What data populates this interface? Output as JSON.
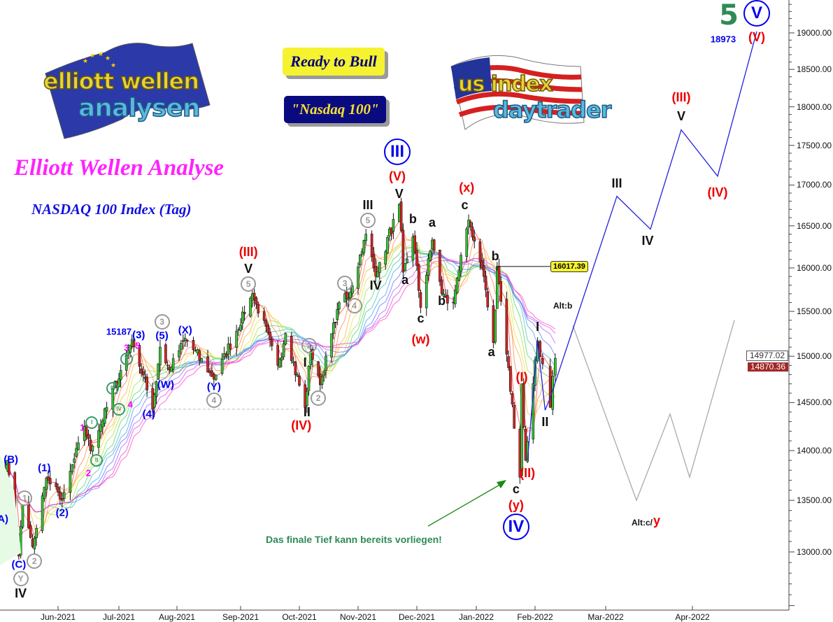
{
  "header": {
    "ready_box": "Ready to Bull",
    "index_box": "\"Nasdaq 100\"",
    "title": "Elliott Wellen Analyse",
    "subtitle": "NASDAQ 100 Index (Tag)"
  },
  "logos": {
    "left": {
      "line1": "elliott wellen",
      "line2": "analysen"
    },
    "right": {
      "line1": "us index",
      "line2": "daytrader"
    }
  },
  "colors": {
    "up_candle": "#33cc33",
    "down_candle": "#dd2222",
    "projection_main": "#2222dd",
    "projection_alt": "#aaaaaa",
    "wave_blue": "#0000ee",
    "wave_red": "#ee0000",
    "wave_black": "#111111",
    "wave_pink": "#ff00ff",
    "wave_grey": "#999999",
    "wave_green": "#3a9a6a",
    "annotation_green": "#2e8b57"
  },
  "chart_data": {
    "type": "candlestick",
    "title": "",
    "y_scale": "log",
    "ylim": [
      12400,
      19500
    ],
    "grid": false,
    "y_ticks": [
      "13000.00",
      "13500.00",
      "14000.00",
      "14500.00",
      "15000.00",
      "15500.00",
      "16000.00",
      "16500.00",
      "17000.00",
      "17500.00",
      "18000.00",
      "18500.00",
      "19000.00"
    ],
    "x_ticks": [
      "Jun-2021",
      "Jul-2021",
      "Aug-2021",
      "Sep-2021",
      "Oct-2021",
      "Nov-2021",
      "Dec-2021",
      "Jan-2022",
      "Feb-2022",
      "Mar-2022",
      "Apr-2022"
    ],
    "price_path": [
      [
        "2021-05-03",
        13700
      ],
      [
        "2021-05-06",
        13900
      ],
      [
        "2021-05-12",
        12960
      ],
      [
        "2021-05-14",
        13450
      ],
      [
        "2021-05-19",
        13050
      ],
      [
        "2021-05-26",
        13720
      ],
      [
        "2021-06-03",
        13500
      ],
      [
        "2021-06-14",
        14250
      ],
      [
        "2021-06-17",
        14000
      ],
      [
        "2021-07-08",
        15187
      ],
      [
        "2021-07-19",
        14430
      ],
      [
        "2021-07-23",
        15100
      ],
      [
        "2021-07-28",
        14850
      ],
      [
        "2021-08-05",
        15200
      ],
      [
        "2021-08-19",
        14750
      ],
      [
        "2021-09-07",
        15700
      ],
      [
        "2021-09-20",
        14900
      ],
      [
        "2021-09-24",
        15250
      ],
      [
        "2021-10-04",
        14450
      ],
      [
        "2021-10-07",
        15050
      ],
      [
        "2021-10-12",
        14690
      ],
      [
        "2021-10-22",
        15600
      ],
      [
        "2021-10-27",
        15650
      ],
      [
        "2021-11-05",
        16400
      ],
      [
        "2021-11-10",
        15900
      ],
      [
        "2021-11-22",
        16760
      ],
      [
        "2021-11-24",
        15950
      ],
      [
        "2021-11-29",
        16370
      ],
      [
        "2021-12-03",
        15545
      ],
      [
        "2021-12-09",
        16330
      ],
      [
        "2021-12-14",
        15700
      ],
      [
        "2021-12-20",
        15600
      ],
      [
        "2021-12-28",
        16570
      ],
      [
        "2022-01-05",
        15900
      ],
      [
        "2022-01-10",
        15150
      ],
      [
        "2022-01-12",
        16017.39
      ],
      [
        "2022-01-24",
        13730
      ],
      [
        "2022-01-25",
        14700
      ],
      [
        "2022-01-27",
        13900
      ],
      [
        "2022-02-02",
        15170
      ],
      [
        "2022-02-07",
        14450
      ],
      [
        "2022-02-09",
        14977.02
      ]
    ],
    "last_price": "14977.02",
    "second_price": "14870.36",
    "callout_price": "16017.39",
    "callout_date": "2022-01-12",
    "support_line": {
      "price": 14430,
      "from": "2021-07-17",
      "to": "2021-10-01"
    },
    "projection_main": [
      [
        "2022-01-28",
        13900
      ],
      [
        "2022-02-02",
        15170
      ],
      [
        "2022-02-05",
        14420
      ],
      [
        "2022-02-07",
        14550
      ],
      [
        "2022-03-05",
        16860
      ],
      [
        "2022-03-17",
        16460
      ],
      [
        "2022-03-28",
        17700
      ],
      [
        "2022-04-10",
        17110
      ],
      [
        "2022-04-24",
        19020
      ]
    ],
    "projection_alt": [
      [
        "2022-02-16",
        15340
      ],
      [
        "2022-03-12",
        13500
      ],
      [
        "2022-03-24",
        14380
      ],
      [
        "2022-03-31",
        13730
      ],
      [
        "2022-04-16",
        15400
      ]
    ],
    "wave_labels": [
      {
        "t": "(A)",
        "c": "wave_blue",
        "d": "2021-05-03",
        "p": 13315
      },
      {
        "t": "(B)",
        "c": "wave_blue",
        "d": "2021-05-08",
        "p": 13910
      },
      {
        "t": "(C)",
        "c": "wave_blue",
        "d": "2021-05-12",
        "p": 12880
      },
      {
        "t": "Y",
        "c": "wave_grey",
        "d": "2021-05-13",
        "p": 12770,
        "circle": true
      },
      {
        "t": "IV",
        "c": "wave_black",
        "d": "2021-05-13",
        "p": 12640,
        "size": "l"
      },
      {
        "t": "1",
        "c": "wave_grey",
        "d": "2021-05-15",
        "p": 13520,
        "circle": true
      },
      {
        "t": "2",
        "c": "wave_grey",
        "d": "2021-05-19",
        "p": 12910,
        "circle": true
      },
      {
        "t": "(1)",
        "c": "wave_blue",
        "d": "2021-05-25",
        "p": 13820
      },
      {
        "t": "(2)",
        "c": "wave_blue",
        "d": "2021-06-03",
        "p": 13380
      },
      {
        "t": "1",
        "c": "wave_pink",
        "d": "2021-06-13",
        "p": 14240,
        "size": "s"
      },
      {
        "t": "I",
        "c": "wave_green",
        "d": "2021-06-17",
        "p": 14290,
        "circle": true,
        "size": "xs"
      },
      {
        "t": "2",
        "c": "wave_pink",
        "d": "2021-06-16",
        "p": 13770,
        "size": "s"
      },
      {
        "t": "II",
        "c": "wave_green",
        "d": "2021-06-20",
        "p": 13900,
        "circle": true,
        "size": "xs"
      },
      {
        "t": "III",
        "c": "wave_green",
        "d": "2021-06-28",
        "p": 14650,
        "circle": true,
        "size": "xs"
      },
      {
        "t": "IV",
        "c": "wave_green",
        "d": "2021-07-01",
        "p": 14430,
        "circle": true,
        "size": "xs"
      },
      {
        "t": "4",
        "c": "wave_pink",
        "d": "2021-07-07",
        "p": 14480,
        "size": "s"
      },
      {
        "t": "V",
        "c": "wave_green",
        "d": "2021-07-05",
        "p": 14970,
        "circle": true,
        "size": "xs"
      },
      {
        "t": "3",
        "c": "wave_pink",
        "d": "2021-07-05",
        "p": 15085,
        "size": "s"
      },
      {
        "t": "5",
        "c": "wave_pink",
        "d": "2021-07-11",
        "p": 15115,
        "size": "s"
      },
      {
        "t": "15187",
        "c": "wave_blue",
        "d": "2021-07-01",
        "p": 15270,
        "size": "s"
      },
      {
        "t": "(3)",
        "c": "wave_blue",
        "d": "2021-07-11",
        "p": 15230
      },
      {
        "t": "(4)",
        "c": "wave_blue",
        "d": "2021-07-17",
        "p": 14380
      },
      {
        "t": "3",
        "c": "wave_grey",
        "d": "2021-07-24",
        "p": 15380,
        "circle": true
      },
      {
        "t": "(5)",
        "c": "wave_blue",
        "d": "2021-07-24",
        "p": 15250
      },
      {
        "t": "(W)",
        "c": "wave_blue",
        "d": "2021-07-26",
        "p": 14690
      },
      {
        "t": "(X)",
        "c": "wave_blue",
        "d": "2021-08-05",
        "p": 15290
      },
      {
        "t": "(Y)",
        "c": "wave_blue",
        "d": "2021-08-19",
        "p": 14670
      },
      {
        "t": "4",
        "c": "wave_grey",
        "d": "2021-08-19",
        "p": 14550,
        "circle": true
      },
      {
        "t": "5",
        "c": "wave_grey",
        "d": "2021-09-05",
        "p": 15810,
        "circle": true
      },
      {
        "t": "V",
        "c": "wave_black",
        "d": "2021-09-05",
        "p": 15990,
        "size": "l"
      },
      {
        "t": "(III)",
        "c": "wave_red",
        "d": "2021-09-05",
        "p": 16190,
        "size": "l"
      },
      {
        "t": "1",
        "c": "wave_grey",
        "d": "2021-10-06",
        "p": 15120,
        "circle": true
      },
      {
        "t": "I",
        "c": "wave_black",
        "d": "2021-10-04",
        "p": 14930,
        "size": "l"
      },
      {
        "t": "2",
        "c": "wave_grey",
        "d": "2021-10-11",
        "p": 14550,
        "circle": true
      },
      {
        "t": "II",
        "c": "wave_black",
        "d": "2021-10-05",
        "p": 14400,
        "size": "l"
      },
      {
        "t": "(IV)",
        "c": "wave_red",
        "d": "2021-10-02",
        "p": 14280,
        "size": "l"
      },
      {
        "t": "3",
        "c": "wave_grey",
        "d": "2021-10-25",
        "p": 15820,
        "circle": true
      },
      {
        "t": "4",
        "c": "wave_grey",
        "d": "2021-10-30",
        "p": 15560,
        "circle": true
      },
      {
        "t": "5",
        "c": "wave_grey",
        "d": "2021-11-06",
        "p": 16570,
        "circle": true
      },
      {
        "t": "III",
        "c": "wave_black",
        "d": "2021-11-06",
        "p": 16750,
        "size": "l"
      },
      {
        "t": "IV",
        "c": "wave_black",
        "d": "2021-11-10",
        "p": 15800,
        "size": "l"
      },
      {
        "t": "III",
        "c": "wave_blue",
        "d": "2021-11-21",
        "p": 17420,
        "circle": true,
        "size": "xl"
      },
      {
        "t": "(V)",
        "c": "wave_red",
        "d": "2021-11-21",
        "p": 17110,
        "size": "l"
      },
      {
        "t": "V",
        "c": "wave_black",
        "d": "2021-11-22",
        "p": 16890,
        "size": "l"
      },
      {
        "t": "b",
        "c": "wave_black",
        "d": "2021-11-29",
        "p": 16580,
        "size": "l"
      },
      {
        "t": "a",
        "c": "wave_black",
        "d": "2021-11-25",
        "p": 15860,
        "size": "l"
      },
      {
        "t": "c",
        "c": "wave_black",
        "d": "2021-12-03",
        "p": 15420,
        "size": "l"
      },
      {
        "t": "(w)",
        "c": "wave_red",
        "d": "2021-12-03",
        "p": 15190,
        "size": "l"
      },
      {
        "t": "a",
        "c": "wave_black",
        "d": "2021-12-09",
        "p": 16540,
        "size": "l"
      },
      {
        "t": "b",
        "c": "wave_black",
        "d": "2021-12-14",
        "p": 15620,
        "size": "l"
      },
      {
        "t": "(x)",
        "c": "wave_red",
        "d": "2021-12-27",
        "p": 16970,
        "size": "l"
      },
      {
        "t": "c",
        "c": "wave_black",
        "d": "2021-12-26",
        "p": 16750,
        "size": "l"
      },
      {
        "t": "b",
        "c": "wave_black",
        "d": "2022-01-11",
        "p": 16140,
        "size": "l"
      },
      {
        "t": "a",
        "c": "wave_black",
        "d": "2022-01-09",
        "p": 15050,
        "size": "l"
      },
      {
        "t": "c",
        "c": "wave_black",
        "d": "2022-01-22",
        "p": 13610,
        "size": "l"
      },
      {
        "t": "(y)",
        "c": "wave_red",
        "d": "2022-01-22",
        "p": 13450,
        "size": "l"
      },
      {
        "t": "IV",
        "c": "wave_blue",
        "d": "2022-01-22",
        "p": 13240,
        "circle": true,
        "size": "xl"
      },
      {
        "t": "(I)",
        "c": "wave_red",
        "d": "2022-01-25",
        "p": 14770,
        "size": "l"
      },
      {
        "t": "(II)",
        "c": "wave_red",
        "d": "2022-01-28",
        "p": 13770,
        "size": "l"
      },
      {
        "t": "I",
        "c": "wave_black",
        "d": "2022-02-02",
        "p": 15330,
        "size": "l"
      },
      {
        "t": "II",
        "c": "wave_black",
        "d": "2022-02-05",
        "p": 14300,
        "size": "l"
      },
      {
        "t": "Alt:b",
        "c": "wave_black",
        "d": "2022-02-12",
        "p": 15560,
        "size": "xs"
      },
      {
        "t": "III",
        "c": "wave_black",
        "d": "2022-03-05",
        "p": 17020,
        "size": "l"
      },
      {
        "t": "IV",
        "c": "wave_black",
        "d": "2022-03-16",
        "p": 16320,
        "size": "l"
      },
      {
        "t": "V",
        "c": "wave_black",
        "d": "2022-03-28",
        "p": 17880,
        "size": "l"
      },
      {
        "t": "(III)",
        "c": "wave_red",
        "d": "2022-03-28",
        "p": 18130,
        "size": "l"
      },
      {
        "t": "(IV)",
        "c": "wave_red",
        "d": "2022-04-10",
        "p": 16910,
        "size": "l"
      },
      {
        "t": "(V)",
        "c": "wave_red",
        "d": "2022-04-24",
        "p": 18940,
        "size": "l"
      },
      {
        "t": "V",
        "c": "wave_blue",
        "d": "2022-04-24",
        "p": 19270,
        "circle": true,
        "size": "xl"
      },
      {
        "t": "5",
        "c": "annotation_green",
        "d": "2022-04-14",
        "p": 19240,
        "size": "xxl"
      },
      {
        "t": "18973",
        "c": "wave_blue",
        "d": "2022-04-12",
        "p": 18910,
        "size": "s"
      },
      {
        "t": "Alt:c/",
        "c": "wave_black",
        "d": "2022-03-14",
        "p": 13280,
        "size": "xs"
      },
      {
        "t": "y",
        "c": "wave_red",
        "d": "2022-03-19",
        "p": 13300,
        "size": "l"
      }
    ],
    "annotation": "Das finale Tief kann bereits vorliegen!"
  }
}
